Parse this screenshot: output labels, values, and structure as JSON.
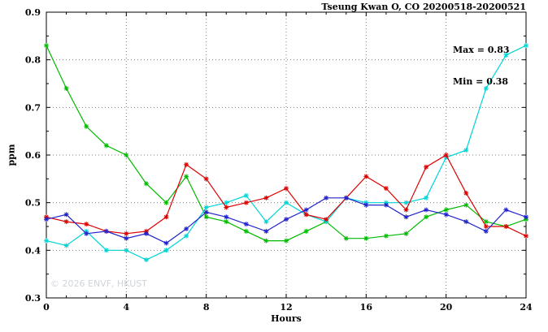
{
  "chart_data": {
    "type": "line",
    "title": "Tseung Kwan O, CO 20200518-20200521",
    "xlabel": "Hours",
    "ylabel": "ppm",
    "xlim": [
      0,
      24
    ],
    "ylim": [
      0.3,
      0.9
    ],
    "xticks": [
      0,
      4,
      8,
      12,
      16,
      20,
      24
    ],
    "yticks": [
      0.3,
      0.4,
      0.5,
      0.6,
      0.7,
      0.8,
      0.9
    ],
    "x_minor_step": 1,
    "y_minor_step": 0.05,
    "grid": true,
    "legend_position": "none",
    "annotations": {
      "max": "Max = 0.83",
      "min": "Min = 0.38"
    },
    "watermark": "© 2026 ENVF, HKUST",
    "x": [
      0,
      1,
      2,
      3,
      4,
      5,
      6,
      7,
      8,
      9,
      10,
      11,
      12,
      13,
      14,
      15,
      16,
      17,
      18,
      19,
      20,
      21,
      22,
      23,
      24
    ],
    "series": [
      {
        "name": "green-line",
        "color": "#00bb00",
        "values": [
          0.83,
          0.74,
          0.66,
          0.62,
          0.6,
          0.54,
          0.5,
          0.555,
          0.47,
          0.46,
          0.44,
          0.42,
          0.42,
          0.44,
          0.46,
          0.425,
          0.425,
          0.43,
          0.435,
          0.47,
          0.485,
          0.495,
          0.46,
          0.45,
          0.465
        ]
      },
      {
        "name": "cyan-line",
        "color": "#00d5d5",
        "values": [
          0.42,
          0.41,
          0.44,
          0.4,
          0.4,
          0.38,
          0.4,
          0.43,
          0.49,
          0.5,
          0.515,
          0.46,
          0.5,
          0.475,
          0.46,
          0.51,
          0.5,
          0.5,
          0.5,
          0.51,
          0.595,
          0.61,
          0.74,
          0.81,
          0.83
        ]
      },
      {
        "name": "red-line",
        "color": "#dd0000",
        "values": [
          0.47,
          0.46,
          0.455,
          0.44,
          0.435,
          0.44,
          0.47,
          0.58,
          0.55,
          0.49,
          0.5,
          0.51,
          0.53,
          0.475,
          0.465,
          0.51,
          0.555,
          0.53,
          0.485,
          0.575,
          0.6,
          0.52,
          0.45,
          0.45,
          0.43
        ]
      },
      {
        "name": "blue-line",
        "color": "#2323cc",
        "values": [
          0.465,
          0.475,
          0.435,
          0.44,
          0.425,
          0.435,
          0.415,
          0.445,
          0.48,
          0.47,
          0.455,
          0.44,
          0.465,
          0.485,
          0.51,
          0.51,
          0.495,
          0.495,
          0.47,
          0.485,
          0.475,
          0.46,
          0.44,
          0.485,
          0.47
        ]
      }
    ]
  }
}
